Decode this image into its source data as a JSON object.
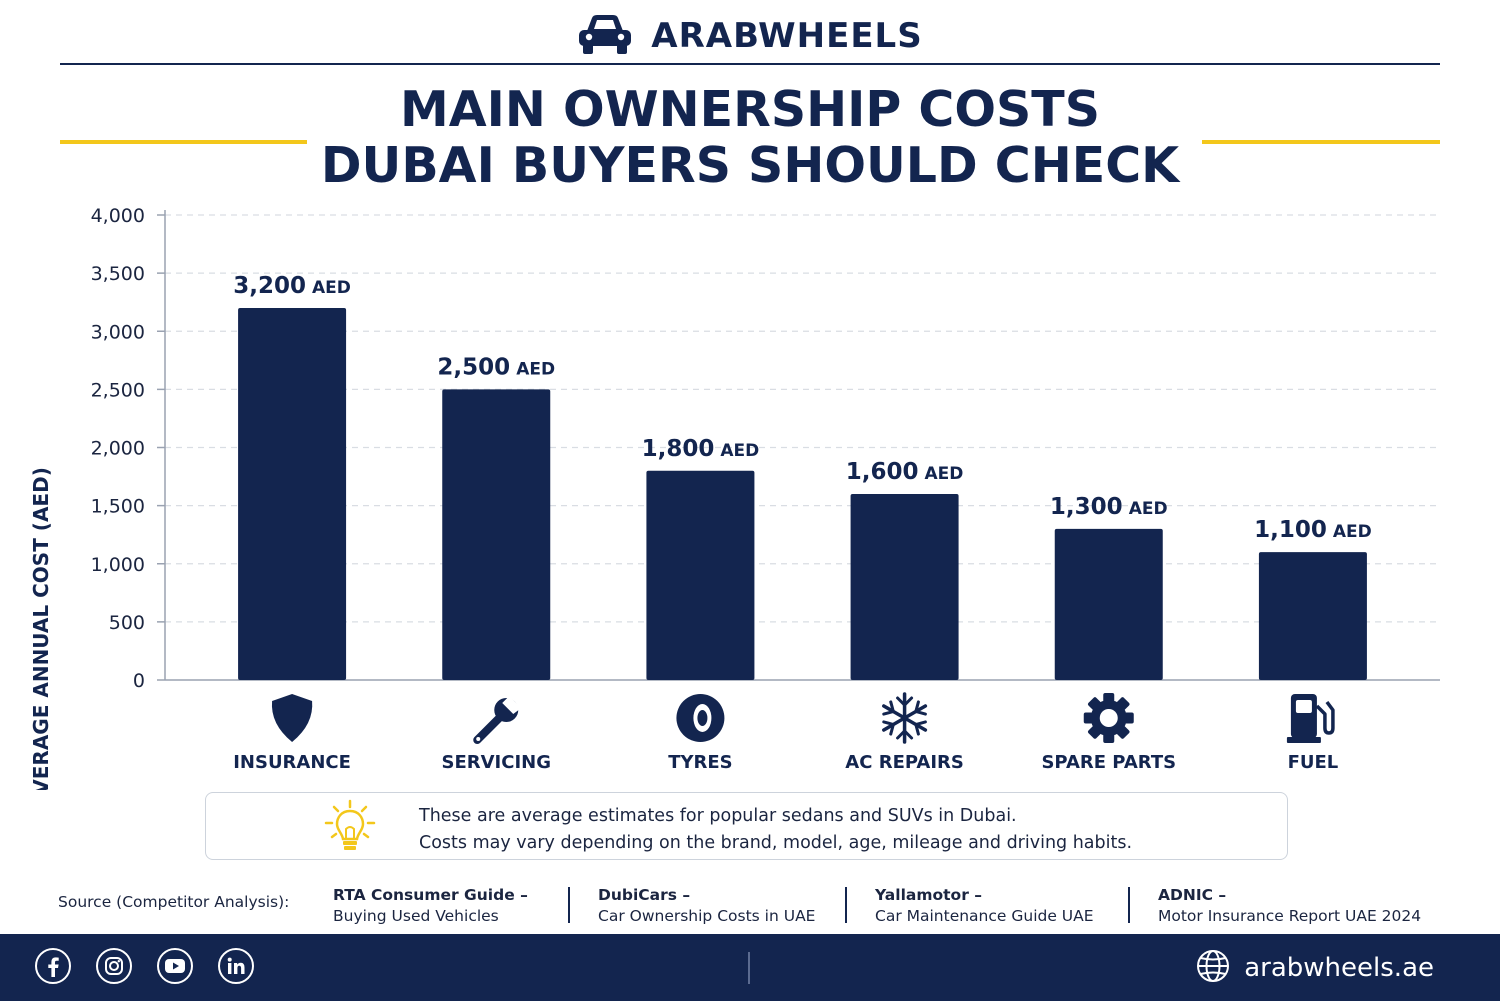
{
  "brand": {
    "name": "ARABWHEELS",
    "logo_icon": "car-icon"
  },
  "title": {
    "line1": "MAIN OWNERSHIP COSTS",
    "line2": "DUBAI BUYERS SHOULD CHECK"
  },
  "colors": {
    "navy": "#13254f",
    "gold": "#f3c71b",
    "grid": "#d9dde3"
  },
  "chart_data": {
    "type": "bar",
    "categories": [
      "INSURANCE",
      "SERVICING",
      "TYRES",
      "AC REPAIRS",
      "SPARE PARTS",
      "FUEL"
    ],
    "values": [
      3200,
      2500,
      1800,
      1600,
      1300,
      1100
    ],
    "value_labels": [
      "3,200",
      "2,500",
      "1,800",
      "1,600",
      "1,300",
      "1,100"
    ],
    "value_unit": "AED",
    "category_icons": [
      "shield-icon",
      "wrench-icon",
      "tyre-icon",
      "snowflake-icon",
      "gear-icon",
      "fuel-pump-icon"
    ],
    "ylabel": "AVERAGE ANNUAL COST (AED)",
    "ylim": [
      0,
      4000
    ],
    "yticks": [
      0,
      500,
      1000,
      1500,
      2000,
      2500,
      3000,
      3500,
      4000
    ],
    "ytick_labels": [
      "0",
      "500",
      "1,000",
      "1,500",
      "2,000",
      "2,500",
      "3,000",
      "3,500",
      "4,000"
    ],
    "grid": true,
    "grid_style": "dashed"
  },
  "note": {
    "icon": "lightbulb-icon",
    "line1": "These are average estimates for popular sedans and SUVs in Dubai.",
    "line2": "Costs may vary depending on the brand, model, age, mileage and driving habits."
  },
  "sources": {
    "label": "Source (Competitor Analysis):",
    "items": [
      {
        "title": "RTA Consumer Guide –",
        "subtitle": "Buying Used Vehicles"
      },
      {
        "title": "DubiCars –",
        "subtitle": "Car Ownership Costs in UAE"
      },
      {
        "title": "Yallamotor –",
        "subtitle": "Car Maintenance Guide UAE"
      },
      {
        "title": "ADNIC –",
        "subtitle": "Motor Insurance Report UAE 2024"
      }
    ]
  },
  "footer": {
    "social_icons": [
      "facebook-icon",
      "instagram-icon",
      "youtube-icon",
      "linkedin-icon"
    ],
    "website": "arabwheels.ae",
    "website_icon": "globe-icon"
  }
}
